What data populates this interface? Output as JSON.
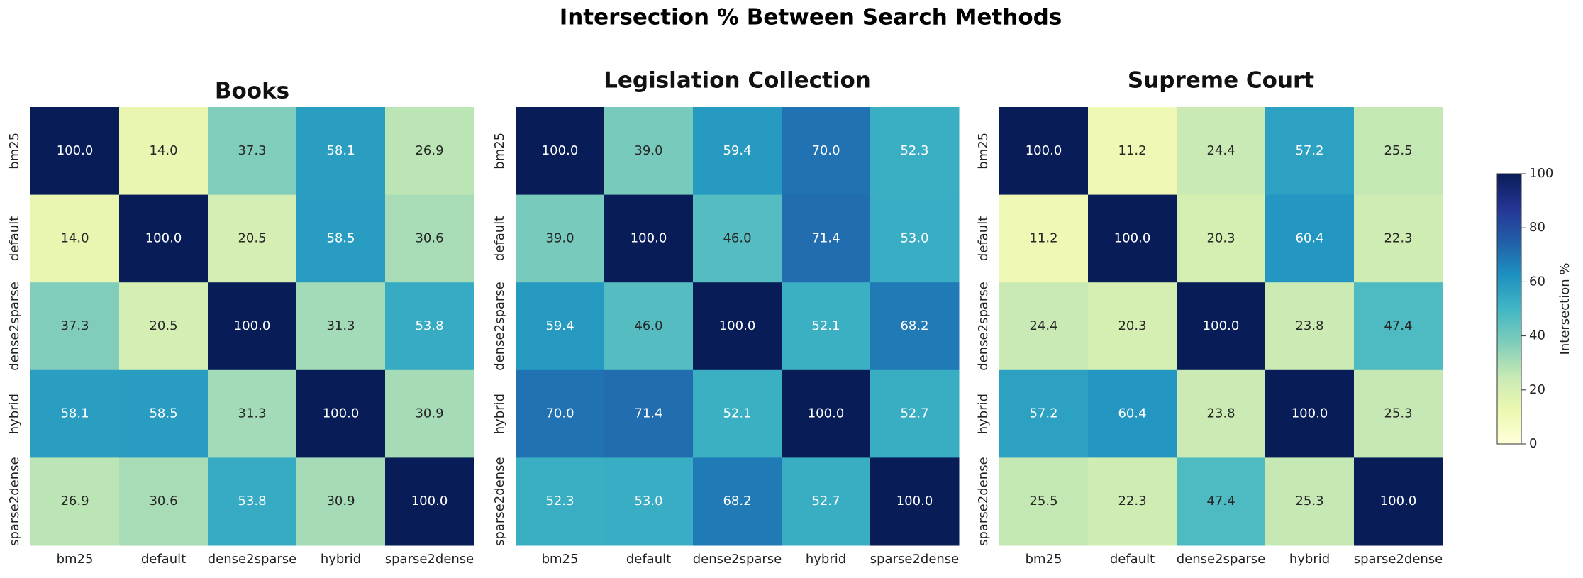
{
  "title": "Intersection % Between Search Methods",
  "chart_data": [
    {
      "type": "heatmap",
      "title": "Books",
      "categories": [
        "bm25",
        "default",
        "dense2sparse",
        "hybrid",
        "sparse2dense"
      ],
      "y_categories": [
        "bm25",
        "default",
        "dense2sparse",
        "hybrid",
        "sparse2dense"
      ],
      "values": [
        [
          100.0,
          14.0,
          37.3,
          58.1,
          26.9
        ],
        [
          14.0,
          100.0,
          20.5,
          58.5,
          30.6
        ],
        [
          37.3,
          20.5,
          100.0,
          31.3,
          53.8
        ],
        [
          58.1,
          58.5,
          31.3,
          100.0,
          30.9
        ],
        [
          26.9,
          30.6,
          53.8,
          30.9,
          100.0
        ]
      ],
      "value_labels": [
        [
          "100.0",
          "14.0",
          "37.3",
          "58.1",
          "26.9"
        ],
        [
          "14.0",
          "100.0",
          "20.5",
          "58.5",
          "30.6"
        ],
        [
          "37.3",
          "20.5",
          "100.0",
          "31.3",
          "53.8"
        ],
        [
          "58.1",
          "58.5",
          "31.3",
          "100.0",
          "30.9"
        ],
        [
          "26.9",
          "30.6",
          "53.8",
          "30.9",
          "100.0"
        ]
      ]
    },
    {
      "type": "heatmap",
      "title": "Legislation Collection",
      "categories": [
        "bm25",
        "default",
        "dense2sparse",
        "hybrid",
        "sparse2dense"
      ],
      "y_categories": [
        "bm25",
        "default",
        "dense2sparse",
        "hybrid",
        "sparse2dense"
      ],
      "values": [
        [
          100.0,
          39.0,
          59.4,
          70.0,
          52.3
        ],
        [
          39.0,
          100.0,
          46.0,
          71.4,
          53.0
        ],
        [
          59.4,
          46.0,
          100.0,
          52.1,
          68.2
        ],
        [
          70.0,
          71.4,
          52.1,
          100.0,
          52.7
        ],
        [
          52.3,
          53.0,
          68.2,
          52.7,
          100.0
        ]
      ],
      "value_labels": [
        [
          "100.0",
          "39.0",
          "59.4",
          "70.0",
          "52.3"
        ],
        [
          "39.0",
          "100.0",
          "46.0",
          "71.4",
          "53.0"
        ],
        [
          "59.4",
          "46.0",
          "100.0",
          "52.1",
          "68.2"
        ],
        [
          "70.0",
          "71.4",
          "52.1",
          "100.0",
          "52.7"
        ],
        [
          "52.3",
          "53.0",
          "68.2",
          "52.7",
          "100.0"
        ]
      ]
    },
    {
      "type": "heatmap",
      "title": "Supreme Court",
      "categories": [
        "bm25",
        "default",
        "dense2sparse",
        "hybrid",
        "sparse2dense"
      ],
      "y_categories": [
        "bm25",
        "default",
        "dense2sparse",
        "hybrid",
        "sparse2dense"
      ],
      "values": [
        [
          100.0,
          11.2,
          24.4,
          57.2,
          25.5
        ],
        [
          11.2,
          100.0,
          20.3,
          60.4,
          22.3
        ],
        [
          24.4,
          20.3,
          100.0,
          23.8,
          47.4
        ],
        [
          57.2,
          60.4,
          23.8,
          100.0,
          25.3
        ],
        [
          25.5,
          22.3,
          47.4,
          25.3,
          100.0
        ]
      ],
      "value_labels": [
        [
          "100.0",
          "11.2",
          "24.4",
          "57.2",
          "25.5"
        ],
        [
          "11.2",
          "100.0",
          "20.3",
          "60.4",
          "22.3"
        ],
        [
          "24.4",
          "20.3",
          "100.0",
          "23.8",
          "47.4"
        ],
        [
          "57.2",
          "60.4",
          "23.8",
          "100.0",
          "25.3"
        ],
        [
          "25.5",
          "22.3",
          "47.4",
          "25.3",
          "100.0"
        ]
      ]
    }
  ],
  "colorbar": {
    "label": "Intersection %",
    "lim": [
      0,
      100
    ],
    "ticks": [
      0,
      20,
      40,
      60,
      80,
      100
    ],
    "colormap": "YlGnBu"
  }
}
